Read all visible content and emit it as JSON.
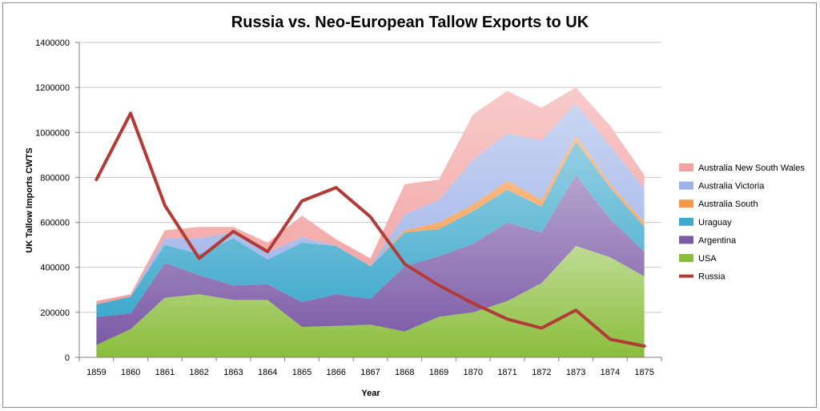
{
  "chart_data": {
    "type": "area",
    "title": "Russia vs. Neo-European Tallow Exports to UK",
    "xlabel": "Year",
    "ylabel": "UK Tallow Imports CWTS",
    "ylim": [
      0,
      1400000
    ],
    "yticks": [
      "0",
      "200000",
      "400000",
      "600000",
      "800000",
      "1000000",
      "1200000",
      "1400000"
    ],
    "categories": [
      "1859",
      "1860",
      "1861",
      "1862",
      "1863",
      "1864",
      "1865",
      "1866",
      "1867",
      "1868",
      "1869",
      "1870",
      "1871",
      "1872",
      "1873",
      "1874",
      "1875"
    ],
    "stacked_series": [
      {
        "name": "USA",
        "color": "#8bbd3c",
        "values": [
          55000,
          125000,
          265000,
          280000,
          255000,
          255000,
          135000,
          140000,
          145000,
          115000,
          180000,
          200000,
          250000,
          330000,
          495000,
          445000,
          360000
        ]
      },
      {
        "name": "Argentina",
        "color": "#7b5aa6",
        "values": [
          125000,
          70000,
          155000,
          85000,
          65000,
          70000,
          110000,
          140000,
          115000,
          290000,
          270000,
          305000,
          350000,
          225000,
          315000,
          170000,
          110000
        ]
      },
      {
        "name": "Uraguay",
        "color": "#3fa9cc",
        "values": [
          55000,
          75000,
          80000,
          95000,
          210000,
          110000,
          265000,
          215000,
          145000,
          150000,
          120000,
          145000,
          145000,
          115000,
          150000,
          140000,
          110000
        ]
      },
      {
        "name": "Australia South",
        "color": "#f79646",
        "values": [
          0,
          0,
          0,
          0,
          0,
          0,
          0,
          0,
          0,
          10000,
          30000,
          30000,
          40000,
          30000,
          25000,
          15000,
          20000
        ]
      },
      {
        "name": "Australia Victoria",
        "color": "#9fb3e8",
        "values": [
          0,
          0,
          30000,
          70000,
          25000,
          30000,
          25000,
          0,
          0,
          70000,
          100000,
          200000,
          210000,
          265000,
          145000,
          170000,
          150000
        ]
      },
      {
        "name": "Australia New South Wales",
        "color": "#f2a0a0",
        "values": [
          15000,
          10000,
          35000,
          50000,
          25000,
          45000,
          95000,
          30000,
          35000,
          135000,
          90000,
          200000,
          190000,
          145000,
          70000,
          90000,
          60000
        ]
      }
    ],
    "line_series": [
      {
        "name": "Russia",
        "color": "#b23b38",
        "values": [
          790000,
          1085000,
          675000,
          440000,
          560000,
          470000,
          695000,
          755000,
          625000,
          415000,
          320000,
          240000,
          170000,
          130000,
          210000,
          80000,
          50000
        ]
      }
    ],
    "legend": [
      "Australia New South Wales",
      "Australia Victoria",
      "Australia South",
      "Uraguay",
      "Argentina",
      "USA",
      "Russia"
    ],
    "legend_position": "right",
    "grid": true
  }
}
